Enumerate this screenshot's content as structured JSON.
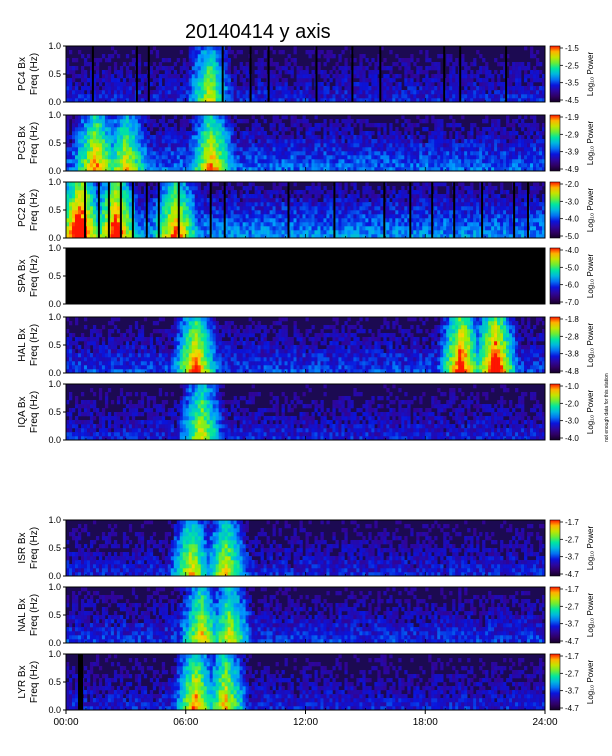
{
  "chart_data": {
    "type": "heatmap",
    "title": "20140414 y axis",
    "x_tick_labels": [
      "00:00",
      "06:00",
      "12:00",
      "18:00",
      "24:00"
    ],
    "x_range_hours": [
      0,
      24
    ],
    "y_tick_labels": [
      "0.0",
      "0.5",
      "1.0"
    ],
    "y_range_hz": [
      0,
      1
    ],
    "colorbar_label": "Log₁₀ Power",
    "colorscale": [
      "#000000",
      "#3a0078",
      "#0010ff",
      "#00c8ff",
      "#00ff60",
      "#ffff00",
      "#ff0000"
    ],
    "side_note": "not enough data for this station",
    "panels": [
      {
        "station": "PC4",
        "component": "Bx",
        "ylabel_top": "PC4  Bx",
        "ylabel_bottom": "Freq (Hz)",
        "cbar_ticks": [
          "-1.5",
          "-2.5",
          "-3.5",
          "-4.5"
        ],
        "intensity": 0.3,
        "hot_events": [
          {
            "t": 7.2,
            "level": 0.55
          }
        ],
        "dark_gaps": [
          1.3,
          3.5,
          4.1,
          7.8,
          9.2,
          10.1,
          12.5,
          14.3,
          15.7,
          18.9,
          19.7,
          22.0
        ]
      },
      {
        "station": "PC3",
        "component": "Bx",
        "ylabel_top": "PC3  Bx",
        "ylabel_bottom": "Freq (Hz)",
        "cbar_ticks": [
          "-1.9",
          "-2.9",
          "-3.9",
          "-4.9"
        ],
        "intensity": 0.4,
        "hot_events": [
          {
            "t": 1.5,
            "level": 0.6
          },
          {
            "t": 3.0,
            "level": 0.5
          },
          {
            "t": 7.3,
            "level": 0.6
          }
        ],
        "dark_gaps": []
      },
      {
        "station": "PC2",
        "component": "Bx",
        "ylabel_top": "PC2  Bx",
        "ylabel_bottom": "Freq (Hz)",
        "cbar_ticks": [
          "-2.0",
          "-3.0",
          "-4.0",
          "-5.0"
        ],
        "intensity": 0.45,
        "hot_events": [
          {
            "t": 0.7,
            "level": 0.8
          },
          {
            "t": 2.5,
            "level": 0.7
          },
          {
            "t": 5.5,
            "level": 0.6
          }
        ],
        "dark_gaps": [
          0.9,
          1.6,
          2.1,
          2.7,
          3.3,
          4.0,
          4.6,
          5.6,
          7.2,
          7.9,
          11.1,
          13.4,
          15.9,
          17.2,
          18.3,
          19.4,
          20.8,
          22.4,
          23.1
        ]
      },
      {
        "station": "SPA",
        "component": "Bx",
        "ylabel_top": "SPA  Bx",
        "ylabel_bottom": "Freq (Hz)",
        "cbar_ticks": [
          "-4.0",
          "-5.0",
          "-6.0",
          "-7.0"
        ],
        "intensity": 0.0,
        "hot_events": [],
        "dark_gaps": []
      },
      {
        "station": "HAL",
        "component": "Bx",
        "ylabel_top": "HAL  Bx",
        "ylabel_bottom": "Freq (Hz)",
        "cbar_ticks": [
          "-1.8",
          "-2.8",
          "-3.8",
          "-4.8"
        ],
        "intensity": 0.35,
        "hot_events": [
          {
            "t": 6.5,
            "level": 0.7
          },
          {
            "t": 19.8,
            "level": 0.8
          },
          {
            "t": 21.5,
            "level": 0.85
          }
        ],
        "dark_gaps": []
      },
      {
        "station": "IQA",
        "component": "Bx",
        "ylabel_top": "IQA  Bx",
        "ylabel_bottom": "Freq (Hz)",
        "cbar_ticks": [
          "-1.0",
          "-2.0",
          "-3.0",
          "-4.0"
        ],
        "intensity": 0.3,
        "hot_events": [
          {
            "t": 6.8,
            "level": 0.6
          }
        ],
        "dark_gaps": []
      },
      {
        "station": "ISR",
        "component": "Bx",
        "ylabel_top": "ISR  Bx",
        "ylabel_bottom": "Freq (Hz)",
        "cbar_ticks": [
          "-1.7",
          "-2.7",
          "-3.7",
          "-4.7"
        ],
        "intensity": 0.3,
        "hot_events": [
          {
            "t": 6.3,
            "level": 0.6
          },
          {
            "t": 8.0,
            "level": 0.6
          }
        ],
        "dark_gaps": []
      },
      {
        "station": "NAL",
        "component": "Bx",
        "ylabel_top": "NAL  Bx",
        "ylabel_bottom": "Freq (Hz)",
        "cbar_ticks": [
          "-1.7",
          "-2.7",
          "-3.7",
          "-4.7"
        ],
        "intensity": 0.33,
        "hot_events": [
          {
            "t": 6.8,
            "level": 0.6
          },
          {
            "t": 8.2,
            "level": 0.55
          }
        ],
        "dark_gaps": []
      },
      {
        "station": "LYR",
        "component": "Bx",
        "ylabel_top": "LYR  Bx",
        "ylabel_bottom": "Freq (Hz)",
        "cbar_ticks": [
          "-1.7",
          "-2.7",
          "-3.7",
          "-4.7"
        ],
        "intensity": 0.3,
        "hot_events": [
          {
            "t": 6.5,
            "level": 0.7
          },
          {
            "t": 8.0,
            "level": 0.65
          }
        ],
        "dark_gaps": [
          0.6,
          0.75
        ]
      }
    ]
  }
}
